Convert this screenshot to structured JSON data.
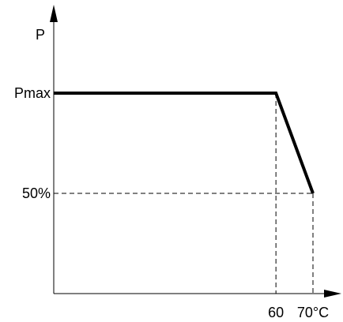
{
  "chart_data": {
    "type": "line",
    "ylabel": "P",
    "xlabel": "",
    "x_unit": "°C",
    "x_ticks": [
      {
        "value": 60,
        "label": "60"
      },
      {
        "value": 70,
        "label": "70°C"
      }
    ],
    "y_ticks": [
      {
        "value": 100,
        "label": "Pmax"
      },
      {
        "value": 50,
        "label": "50%"
      }
    ],
    "series": [
      {
        "x": [
          0,
          60,
          70
        ],
        "y": [
          100,
          100,
          50
        ]
      }
    ],
    "guide_lines": [
      {
        "x": 60,
        "y": 100
      },
      {
        "x": 70,
        "y": 50
      }
    ],
    "xlim": [
      0,
      70
    ],
    "ylim": [
      0,
      100
    ],
    "grid": false,
    "colors": {
      "line": "#000000",
      "axis": "#000000",
      "guide": "#000000"
    }
  }
}
